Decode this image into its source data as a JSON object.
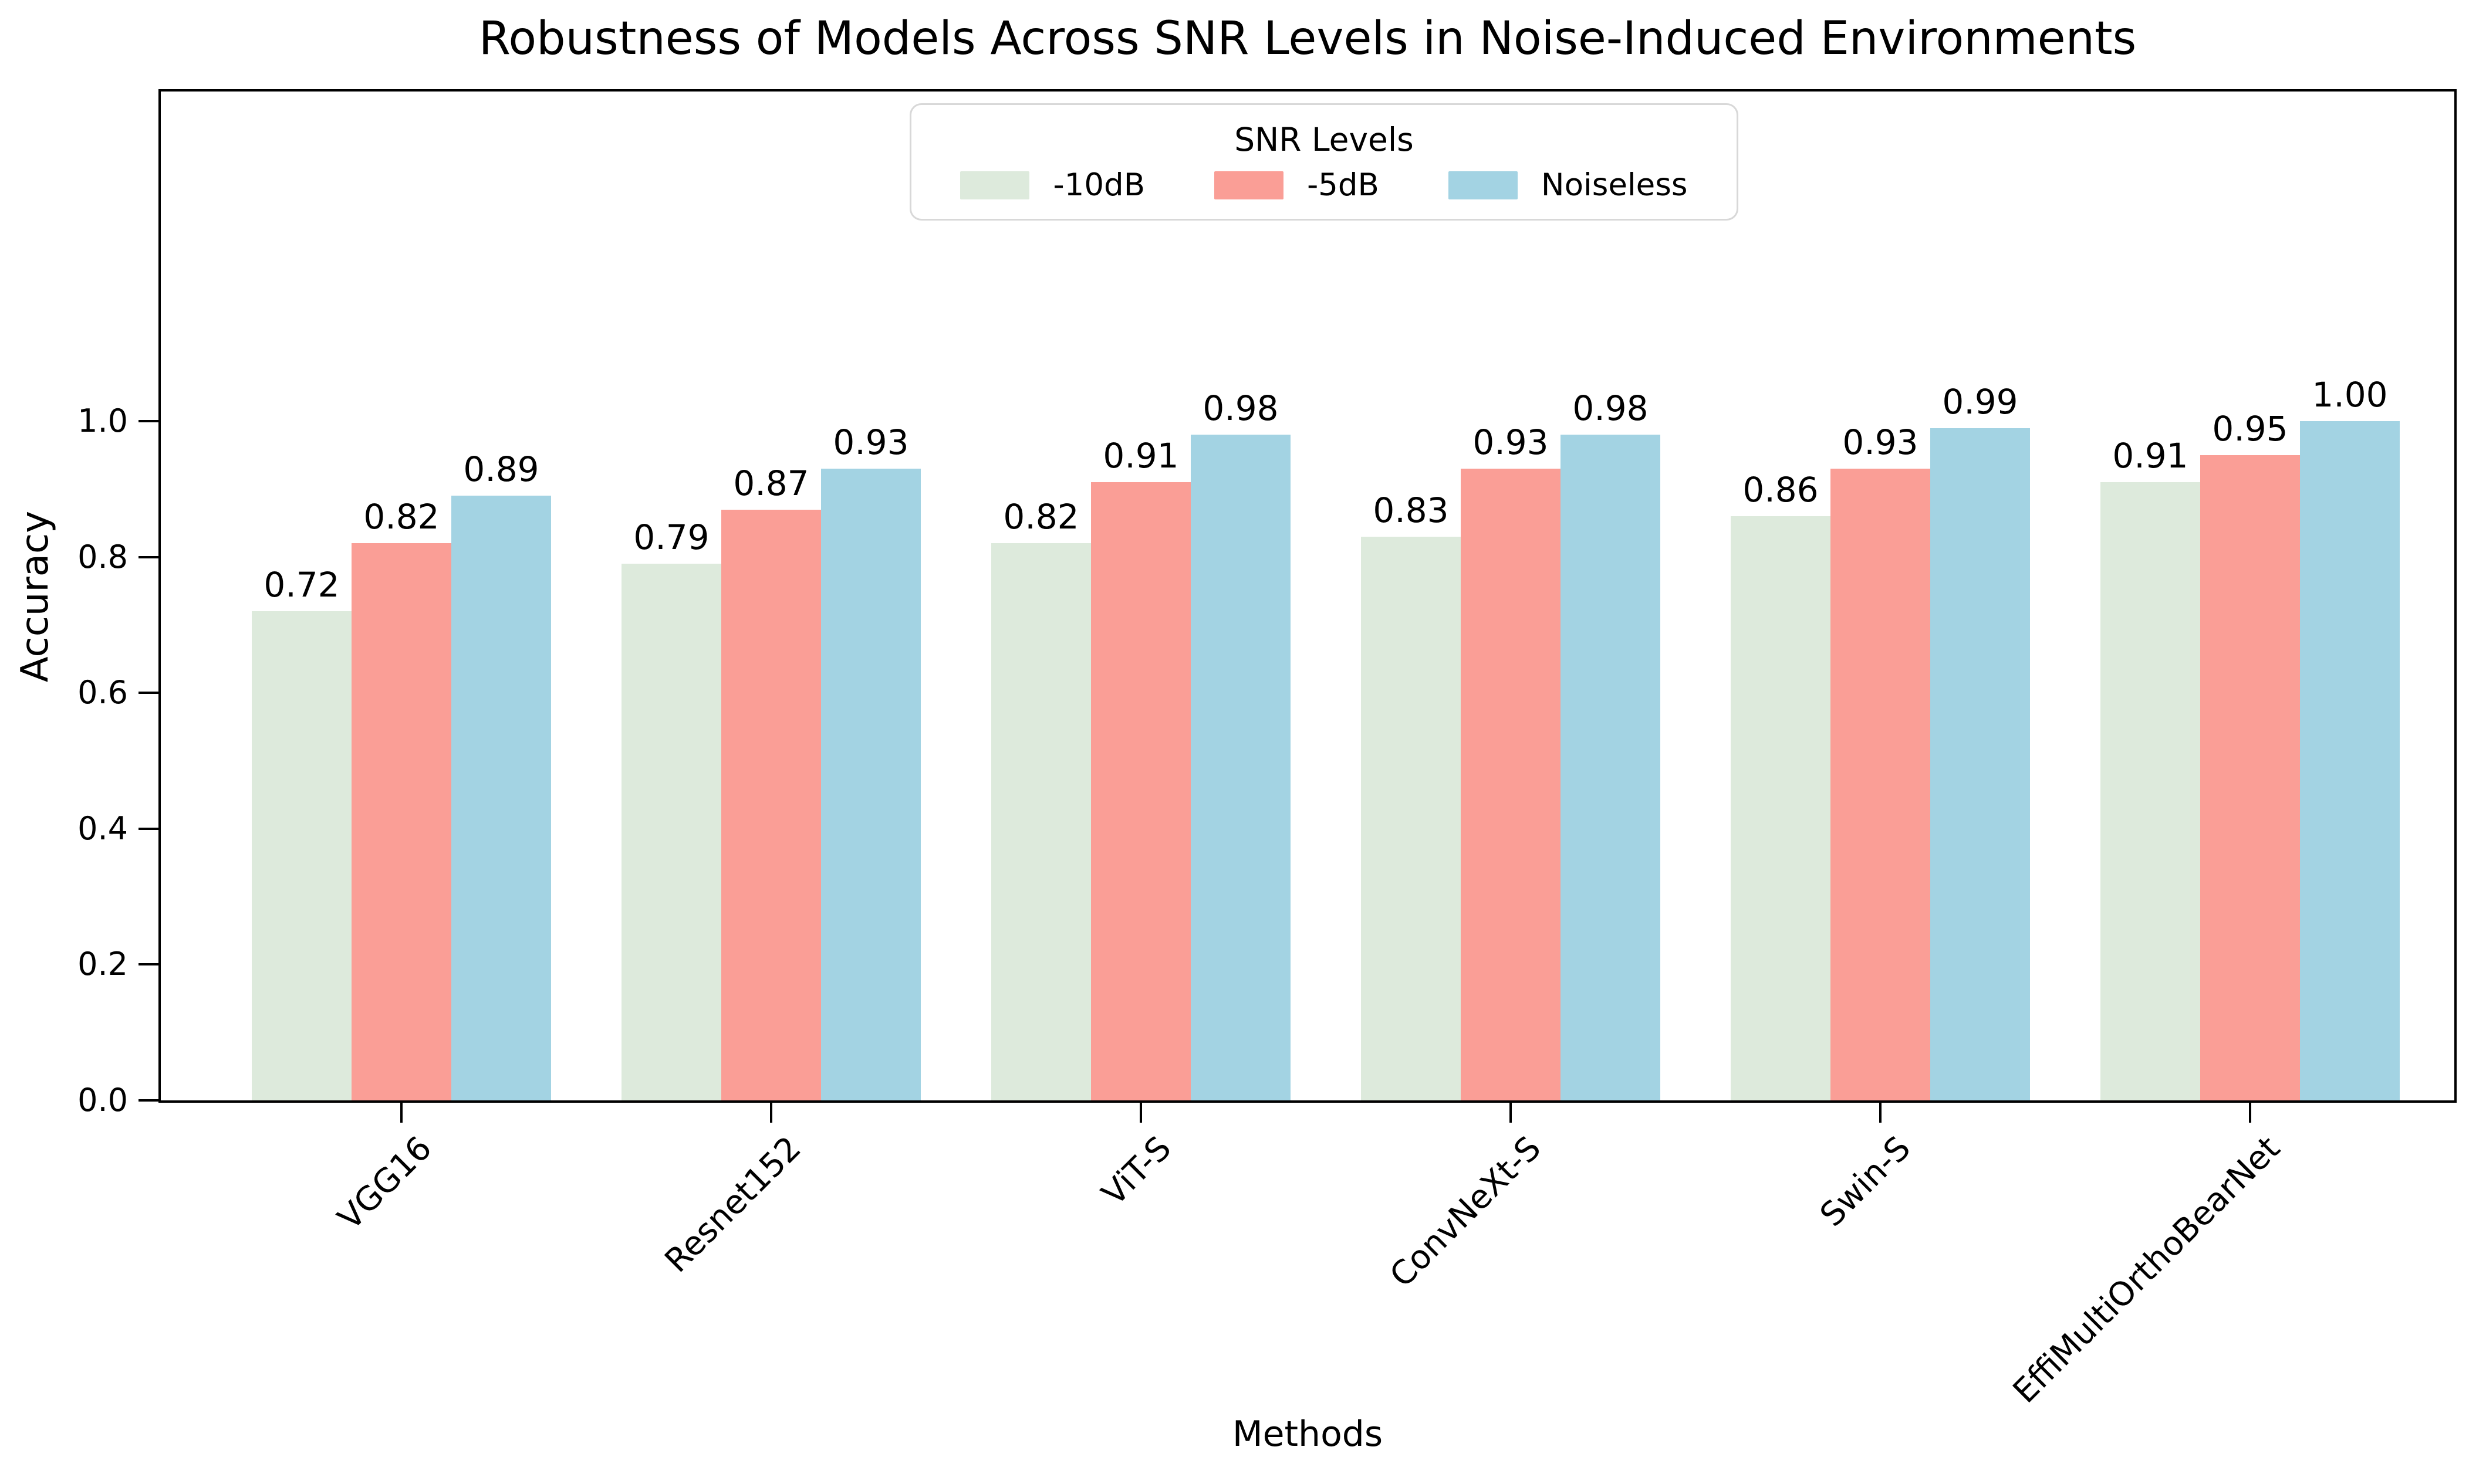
{
  "chart_data": {
    "type": "bar",
    "title": "Robustness of Models Across SNR Levels in Noise-Induced Environments",
    "xlabel": "Methods",
    "ylabel": "Accuracy",
    "legend_title": "SNR Levels",
    "legend_position": "upper center",
    "categories": [
      "VGG16",
      "Resnet152",
      "ViT-S",
      "ConvNeXt-S",
      "Swin-S",
      "EffiMultiOrthoBearNet"
    ],
    "series": [
      {
        "name": "-10dB",
        "color": "#DDEADC",
        "values": [
          0.72,
          0.79,
          0.82,
          0.83,
          0.86,
          0.91
        ]
      },
      {
        "name": "-5dB",
        "color": "#FA9E96",
        "values": [
          0.82,
          0.87,
          0.91,
          0.93,
          0.93,
          0.95
        ]
      },
      {
        "name": "Noiseless",
        "color": "#A3D3E3",
        "values": [
          0.89,
          0.93,
          0.98,
          0.98,
          0.99,
          1.0
        ]
      }
    ],
    "bar_value_labels": true,
    "value_label_decimals": 2,
    "yticks": [
      0.0,
      0.2,
      0.4,
      0.6,
      0.8,
      1.0
    ],
    "ytick_decimals": 1,
    "ylim": [
      0.0,
      1.5
    ],
    "grid": false,
    "background_color": "#ffffff",
    "spine_color": "#000000"
  }
}
